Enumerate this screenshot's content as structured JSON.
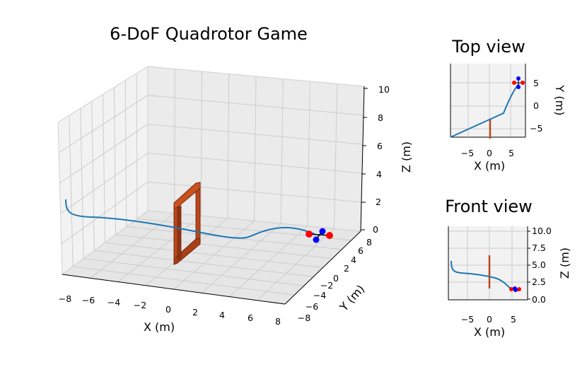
{
  "game": {
    "title": "6-DoF Quadrotor Game",
    "top_view_title": "Top view",
    "front_view_title": "Front view"
  },
  "main_view": {
    "xlabel": "X (m)",
    "ylabel": "Y (m)",
    "zlabel": "Z (m)",
    "x_ticks": [
      "−8",
      "−6",
      "−4",
      "−2",
      "0",
      "2",
      "4",
      "6",
      "8"
    ],
    "y_ticks": [
      "−8",
      "−6",
      "−4",
      "−2",
      "0",
      "2",
      "4",
      "6",
      "8"
    ],
    "z_ticks": [
      "0",
      "2",
      "4",
      "6",
      "8",
      "10"
    ]
  },
  "top_view": {
    "xlabel": "X (m)",
    "ylabel": "Y (m)",
    "x_ticks": [
      "−5",
      "0",
      "5"
    ],
    "y_ticks": [
      "5",
      "0",
      "−5"
    ]
  },
  "front_view": {
    "xlabel": "X (m)",
    "ylabel": "Z (m)",
    "x_ticks": [
      "−5",
      "0",
      "5"
    ],
    "z_ticks": [
      "10.0",
      "7.5",
      "5.0",
      "2.5",
      "0.0"
    ]
  },
  "colors": {
    "trajectory": "#1f77b4",
    "gate": "#b9471c",
    "gate_dark": "#7a2a0c",
    "rotor_front": "#ff0000",
    "rotor_side": "#0000ff",
    "pane": "#f2f2f2",
    "grid": "#cccccc"
  },
  "chart_data": {
    "type": "line",
    "series": [
      {
        "name": "",
        "x": [
          -8,
          -7.8,
          -6,
          -3,
          0,
          2,
          3.5,
          4.5,
          5.5,
          6.5
        ],
        "y": [
          -8,
          -7.5,
          -6,
          -4.5,
          -3,
          -2,
          -1,
          2,
          4,
          5
        ],
        "z": [
          2.2,
          1.4,
          1.0,
          0.8,
          0.6,
          0.5,
          0.5,
          0.5,
          0.4,
          0.3
        ]
      }
    ],
    "gate": {
      "x": 0,
      "y": [
        -8,
        -3
      ],
      "z": [
        1.5,
        5.5
      ]
    },
    "quadrotor_position": {
      "x": 6.5,
      "y": 5,
      "z": 0.2
    },
    "xlim": [
      -8,
      8
    ],
    "ylim": [
      -8,
      8
    ],
    "zlim": [
      0,
      10
    ]
  }
}
